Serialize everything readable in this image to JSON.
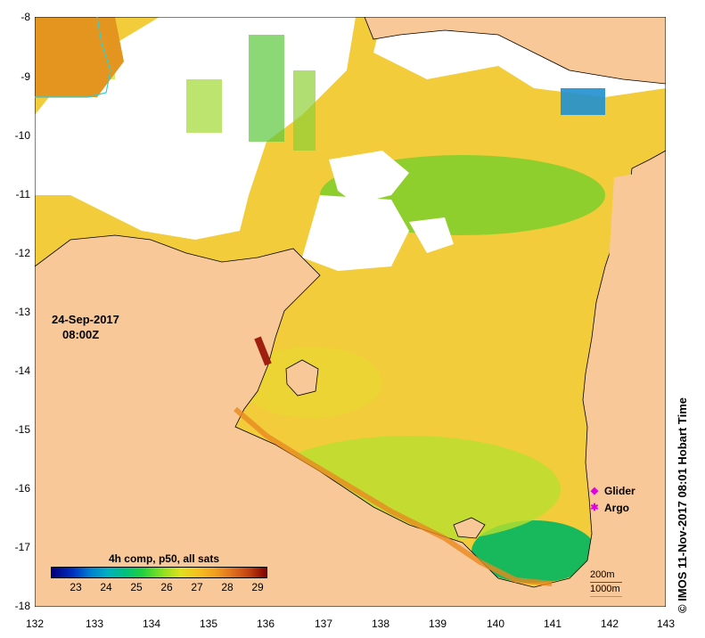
{
  "map": {
    "lon_ticks": [
      "132",
      "133",
      "134",
      "135",
      "136",
      "137",
      "138",
      "139",
      "140",
      "141",
      "142",
      "143"
    ],
    "lat_ticks": [
      "-8",
      "-9",
      "-10",
      "-11",
      "-12",
      "-13",
      "-14",
      "-15",
      "-16",
      "-17",
      "-18"
    ],
    "land_color": "#f8c898",
    "cloud_color": "#ffffff",
    "sea_color": "#f0d040"
  },
  "date": {
    "day": "24-Sep-2017",
    "time": "08:00Z"
  },
  "legend": {
    "glider": "Glider",
    "argo": "Argo",
    "marker_color": "#e000e0"
  },
  "colorbar": {
    "title": "4h comp, p50, all sats",
    "ticks": [
      "23",
      "24",
      "25",
      "26",
      "27",
      "28",
      "29"
    ]
  },
  "scalebar": {
    "depth_200": "200m",
    "depth_1000": "1000m"
  },
  "credit": "© IMOS 11-Nov-2017 08:01 Hobart Time"
}
